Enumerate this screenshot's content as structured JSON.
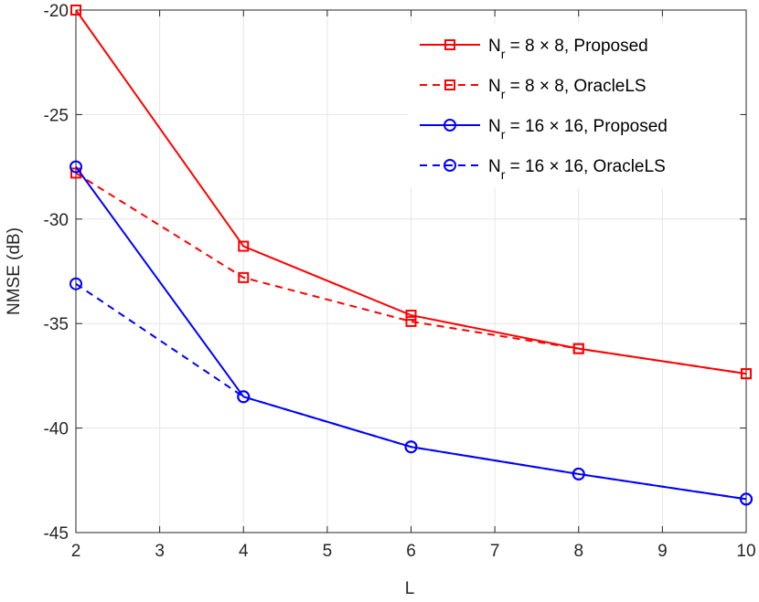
{
  "chart_data": {
    "type": "line",
    "title": "",
    "xlabel": "L",
    "ylabel": "NMSE (dB)",
    "xlim": [
      2,
      10
    ],
    "ylim": [
      -45,
      -20
    ],
    "xticks": [
      2,
      3,
      4,
      5,
      6,
      7,
      8,
      9,
      10
    ],
    "yticks": [
      -20,
      -25,
      -30,
      -35,
      -40,
      -45
    ],
    "grid": true,
    "legend_position": "top-right",
    "x": [
      2,
      4,
      6,
      8,
      10
    ],
    "series": [
      {
        "name_main": "N",
        "name_sub": "r",
        "name_rest": " = 8 × 8, Proposed",
        "color": "#ff0000",
        "line": "solid",
        "marker": "square",
        "values": [
          -20.0,
          -31.3,
          -34.6,
          -36.2,
          -37.4
        ]
      },
      {
        "name_main": "N",
        "name_sub": "r",
        "name_rest": " = 8 × 8, OracleLS",
        "color": "#ff0000",
        "line": "dashed",
        "marker": "square",
        "values": [
          -27.8,
          -32.8,
          -34.9,
          -36.2,
          -37.4
        ]
      },
      {
        "name_main": "N",
        "name_sub": "r",
        "name_rest": " = 16 × 16, Proposed",
        "color": "#0000ff",
        "line": "solid",
        "marker": "circle",
        "values": [
          -27.5,
          -38.5,
          -40.9,
          -42.2,
          -43.4
        ]
      },
      {
        "name_main": "N",
        "name_sub": "r",
        "name_rest": " = 16 × 16, OracleLS",
        "color": "#0000ff",
        "line": "dashed",
        "marker": "circle",
        "values": [
          -33.1,
          -38.5,
          -40.9,
          -42.2,
          -43.4
        ]
      }
    ]
  }
}
